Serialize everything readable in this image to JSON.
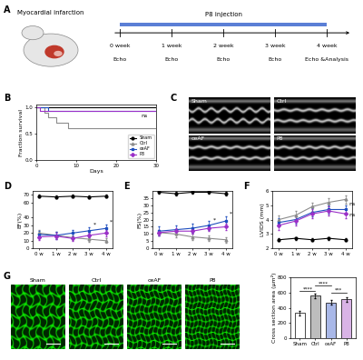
{
  "panel_labels": [
    "A",
    "B",
    "C",
    "D",
    "E",
    "F",
    "G"
  ],
  "diagram": {
    "title": "Myocardial infarction",
    "treatment": "P8 injection",
    "timeline": [
      {
        "label": "0 week",
        "event": "Echo"
      },
      {
        "label": "1 week",
        "event": "Echo"
      },
      {
        "label": "2 week",
        "event": "Echo"
      },
      {
        "label": "3 week",
        "event": "Echo"
      },
      {
        "label": "4 week",
        "event": "Echo &Analysis"
      }
    ]
  },
  "echo_images": {
    "labels": [
      "Sham",
      "Ctrl",
      "ceAF",
      "P8"
    ]
  },
  "histology_images": {
    "labels": [
      "Sham",
      "Ctrl",
      "ceAF",
      "P8"
    ]
  },
  "chart_data": [
    {
      "type": "step",
      "x_label": "Days",
      "y_label": "Fraction survival",
      "xlim": [
        0,
        30
      ],
      "xticks": [
        0,
        10,
        20,
        30
      ],
      "ylim": [
        0,
        1.05
      ],
      "yticks": [
        {
          "value": 0,
          "label": "0.0"
        },
        {
          "value": 0.5,
          "label": "0.5"
        },
        {
          "value": 1,
          "label": "1.0"
        }
      ],
      "legend": "lower right",
      "series": [
        {
          "name": "Sham",
          "color": "#000000",
          "marker": "circle",
          "x": [
            0,
            30
          ],
          "values": [
            1.0,
            1.0
          ]
        },
        {
          "name": "Ctrl",
          "color": "#8c8c8c",
          "marker": "triangle",
          "x": [
            0,
            2,
            3,
            5,
            8,
            30
          ],
          "values": [
            1.0,
            0.9,
            0.8,
            0.7,
            0.6,
            0.6
          ]
        },
        {
          "name": "ceAF",
          "color": "#1f4fbf",
          "marker": "square",
          "x": [
            0,
            3,
            30
          ],
          "values": [
            1.0,
            0.93,
            0.93
          ]
        },
        {
          "name": "P8",
          "color": "#9b30c8",
          "marker": "diamond",
          "x": [
            0,
            1,
            30
          ],
          "values": [
            1.0,
            0.93,
            0.93
          ]
        }
      ],
      "annotations": [
        {
          "text": "ns",
          "x": 27,
          "y": 0.8
        }
      ]
    },
    {
      "type": "line",
      "y_label": "EF(%)",
      "categories": [
        "0 w",
        "1 w",
        "2 w",
        "3 w",
        "4 w"
      ],
      "ylim": [
        0,
        75
      ],
      "yticks": [
        0,
        10,
        20,
        30,
        40,
        60,
        70
      ],
      "series": [
        {
          "name": "Sham",
          "color": "#000000",
          "marker": "circle",
          "values": [
            68,
            67,
            68,
            67,
            68
          ],
          "errors": [
            2,
            2,
            2,
            2,
            2
          ]
        },
        {
          "name": "Ctrl",
          "color": "#8c8c8c",
          "marker": "triangle",
          "values": [
            20,
            17,
            14,
            12,
            10
          ],
          "errors": [
            4,
            4,
            3,
            3,
            3
          ]
        },
        {
          "name": "ceAF",
          "color": "#1f4fbf",
          "marker": "square",
          "values": [
            18,
            17,
            20,
            23,
            26
          ],
          "errors": [
            5,
            5,
            4,
            4,
            5
          ]
        },
        {
          "name": "P8",
          "color": "#9b30c8",
          "marker": "diamond",
          "values": [
            15,
            16,
            13,
            17,
            20
          ],
          "errors": [
            4,
            4,
            3,
            3,
            4
          ]
        }
      ],
      "annotations": [
        {
          "text": "*",
          "x": "3 w",
          "y": 29
        },
        {
          "text": "*",
          "x": "4 w",
          "y": 33
        }
      ]
    },
    {
      "type": "line",
      "y_label": "FS(%)",
      "categories": [
        "0 w",
        "1 w",
        "2 w",
        "3 w",
        "4 w"
      ],
      "ylim": [
        0,
        40
      ],
      "yticks": [
        0,
        5,
        10,
        15,
        20,
        25,
        30,
        35
      ],
      "series": [
        {
          "name": "Sham",
          "color": "#000000",
          "marker": "circle",
          "values": [
            39,
            38,
            39,
            39,
            38
          ],
          "errors": [
            1,
            1,
            1,
            1,
            1
          ]
        },
        {
          "name": "Ctrl",
          "color": "#8c8c8c",
          "marker": "triangle",
          "values": [
            11,
            10,
            8,
            7,
            6
          ],
          "errors": [
            2,
            2,
            2,
            2,
            2
          ]
        },
        {
          "name": "ceAF",
          "color": "#1f4fbf",
          "marker": "square",
          "values": [
            12,
            13,
            14,
            16,
            19
          ],
          "errors": [
            3,
            3,
            3,
            3,
            3
          ]
        },
        {
          "name": "P8",
          "color": "#9b30c8",
          "marker": "diamond",
          "values": [
            11,
            12,
            12,
            14,
            15
          ],
          "errors": [
            2,
            2,
            2,
            2,
            2
          ]
        }
      ],
      "annotations": [
        {
          "text": "*",
          "x": "3 w",
          "y": 19
        },
        {
          "text": "*",
          "x": "4 w",
          "y": 23
        }
      ]
    },
    {
      "type": "line",
      "y_label": "LVIDS (mm)",
      "categories": [
        "0 w",
        "1 w",
        "2 w",
        "3 w",
        "4 w"
      ],
      "ylim": [
        2,
        6
      ],
      "yticks": [
        2,
        3,
        4,
        5,
        6
      ],
      "series": [
        {
          "name": "Sham",
          "color": "#000000",
          "marker": "circle",
          "values": [
            2.6,
            2.7,
            2.6,
            2.7,
            2.6
          ],
          "errors": [
            0.1,
            0.1,
            0.1,
            0.1,
            0.1
          ]
        },
        {
          "name": "Ctrl",
          "color": "#8c8c8c",
          "marker": "triangle",
          "values": [
            4.0,
            4.3,
            4.9,
            5.2,
            5.4
          ],
          "errors": [
            0.3,
            0.3,
            0.3,
            0.3,
            0.3
          ]
        },
        {
          "name": "ceAF",
          "color": "#1f4fbf",
          "marker": "square",
          "values": [
            3.8,
            4.0,
            4.5,
            4.7,
            4.7
          ],
          "errors": [
            0.3,
            0.3,
            0.3,
            0.3,
            0.3
          ]
        },
        {
          "name": "P8",
          "color": "#9b30c8",
          "marker": "diamond",
          "values": [
            3.6,
            3.9,
            4.4,
            4.6,
            4.4
          ],
          "errors": [
            0.3,
            0.3,
            0.3,
            0.3,
            0.3
          ]
        }
      ],
      "annotations": [
        {
          "text": "ns",
          "x": "4 w",
          "y": 5.0
        },
        {
          "text": "ns",
          "x": "4 w",
          "y": 4.2
        }
      ]
    },
    {
      "type": "bar",
      "y_label": "Cross section area (μm²)",
      "categories": [
        "Sham",
        "Ctrl",
        "ceAF",
        "P8"
      ],
      "values": [
        330,
        560,
        470,
        510
      ],
      "errors": [
        25,
        30,
        30,
        30
      ],
      "colors": [
        "#ffffff",
        "#bdbdbd",
        "#a9b8e8",
        "#d9b3e6"
      ],
      "ylim": [
        0,
        800
      ],
      "yticks": [
        0,
        200,
        400,
        600,
        800
      ],
      "comparisons": [
        {
          "from": "Sham",
          "to": "Ctrl",
          "text": "****",
          "y": 620
        },
        {
          "from": "Ctrl",
          "to": "ceAF",
          "text": "****",
          "y": 690
        },
        {
          "from": "ceAF",
          "to": "P8",
          "text": "***",
          "y": 600
        }
      ]
    }
  ]
}
